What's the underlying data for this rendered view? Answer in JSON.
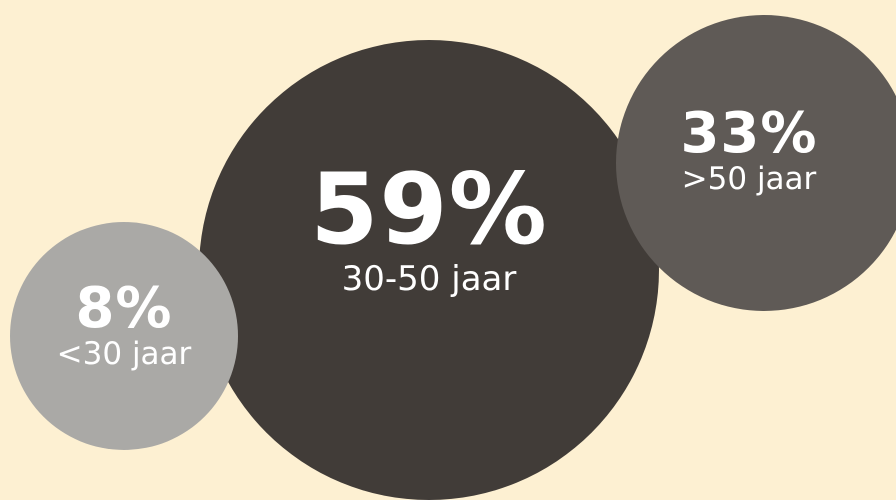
{
  "chart_data": {
    "type": "bubble",
    "items": [
      {
        "name": "lt30",
        "value_text": "8%",
        "label": "<30 jaar",
        "value": 8,
        "color": "#aaa9a6"
      },
      {
        "name": "30to50",
        "value_text": "59%",
        "label": "30-50 jaar",
        "value": 59,
        "color": "#413c38"
      },
      {
        "name": "gt50",
        "value_text": "33%",
        "label": ">50 jaar",
        "value": 33,
        "color": "#5f5a56"
      }
    ]
  },
  "background_color": "#fdf0d2"
}
